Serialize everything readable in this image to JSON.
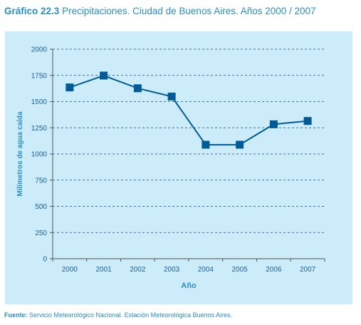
{
  "header": {
    "number": "Gráfico 22.3",
    "title": "Precipitaciones. Ciudad de Buenos Aires. Años 2000 / 2007"
  },
  "footer": {
    "label": "Fuente:",
    "text": "Servicio Meteorológico Nacional. Estación Meteorológica Buenos Aires."
  },
  "colors": {
    "accent": "#2a8fc4",
    "panel_bg": "#ccecf9",
    "series": "#005b96",
    "axis_text": "#1a5f9a",
    "grid": "#1a4a80"
  },
  "chart_data": {
    "type": "line",
    "categories": [
      "2000",
      "2001",
      "2002",
      "2003",
      "2004",
      "2005",
      "2006",
      "2007"
    ],
    "series": [
      {
        "values": [
          1635,
          1748,
          1627,
          1548,
          1088,
          1088,
          1283,
          1315
        ]
      }
    ],
    "xlabel": "Año",
    "ylabel": "Milímetros de agua caída",
    "ylim": [
      0,
      2000
    ],
    "yticks": [
      "0",
      "250",
      "500",
      "750",
      "1000",
      "1250",
      "1500",
      "1750",
      "2000"
    ],
    "grid": true,
    "grid_style": "dashed",
    "marker": "square"
  }
}
